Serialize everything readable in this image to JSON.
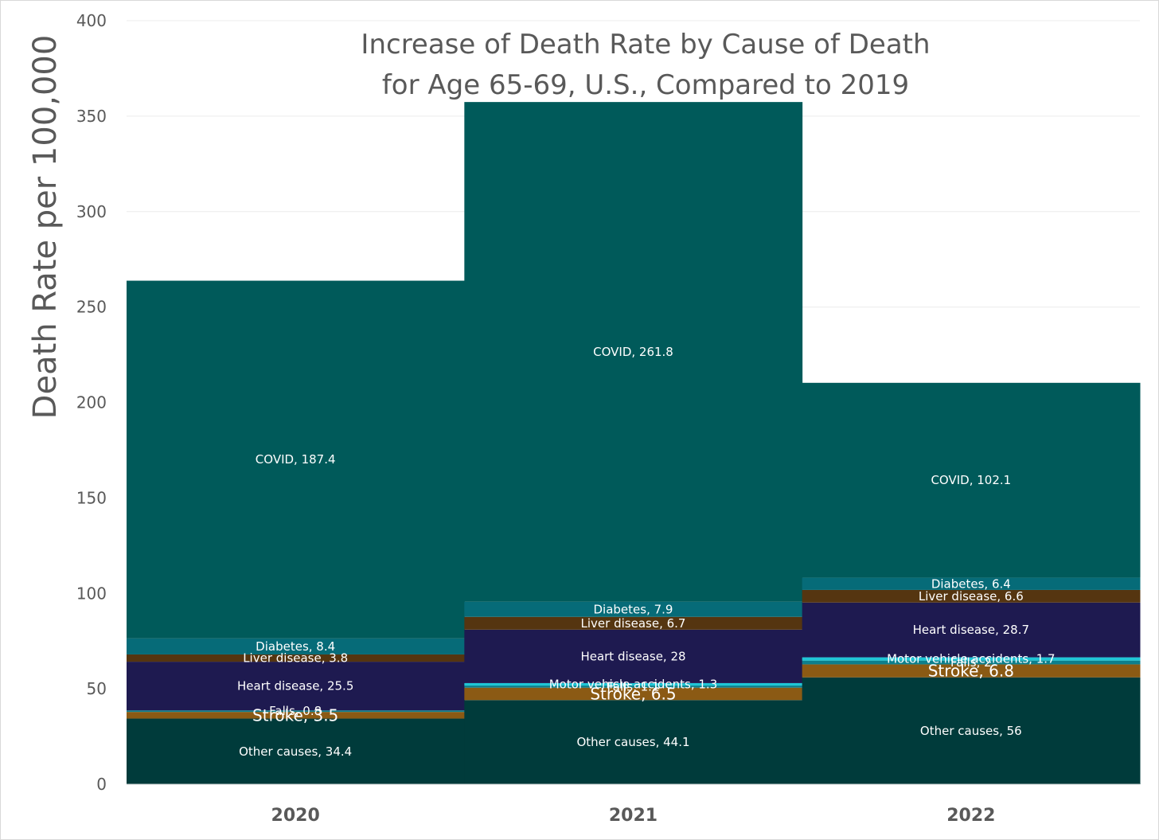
{
  "chart_data": {
    "type": "bar",
    "stacked": true,
    "title": [
      "Increase of Death Rate by Cause of Death",
      "for Age 65-69, U.S., Compared to 2019"
    ],
    "xlabel": "",
    "ylabel": "Death Rate per 100,000",
    "ylim": [
      0,
      400
    ],
    "yticks": [
      0,
      50,
      100,
      150,
      200,
      250,
      300,
      350,
      400
    ],
    "grid": true,
    "legend": "none",
    "categories": [
      "2020",
      "2021",
      "2022"
    ],
    "series": [
      {
        "name": "Other causes",
        "color": "#003b3b",
        "values": [
          34.4,
          44.1,
          56
        ]
      },
      {
        "name": "Stroke",
        "color": "#8b5a14",
        "values": [
          3.5,
          6.5,
          6.8
        ]
      },
      {
        "name": "Falls",
        "color": "#0e7f8c",
        "values": [
          0.8,
          1.1,
          2.0
        ]
      },
      {
        "name": "Motor vehicle accidents",
        "color": "#1fc6d6",
        "values": [
          0,
          1.3,
          1.7
        ]
      },
      {
        "name": "Heart disease",
        "color": "#1e1a50",
        "values": [
          25.5,
          28,
          28.7
        ]
      },
      {
        "name": "Liver disease",
        "color": "#553510",
        "values": [
          3.8,
          6.7,
          6.6
        ]
      },
      {
        "name": "Diabetes",
        "color": "#066b78",
        "values": [
          8.4,
          7.9,
          6.4
        ]
      },
      {
        "name": "COVID",
        "color": "#005a5a",
        "values": [
          187.4,
          261.8,
          102.1
        ]
      }
    ],
    "data_labels": [
      [
        "Other causes, 34.4",
        "Stroke, 3.5",
        "Falls, 0.8",
        "",
        "Heart disease, 25.5",
        "Liver disease, 3.8",
        "Diabetes, 8.4",
        "COVID, 187.4"
      ],
      [
        "Other causes, 44.1",
        "Stroke, 6.5",
        "Falls, 1.1",
        "Motor vehicle accidents, 1.3",
        "Heart disease, 28",
        "Liver disease, 6.7",
        "Diabetes, 7.9",
        "COVID, 261.8"
      ],
      [
        "Other causes, 56",
        "Stroke, 6.8",
        "Falls, 2",
        "Motor vehicle accidents, 1.7",
        "Heart disease, 28.7",
        "Liver disease, 6.6",
        "Diabetes, 6.4",
        "COVID, 102.1"
      ]
    ]
  }
}
